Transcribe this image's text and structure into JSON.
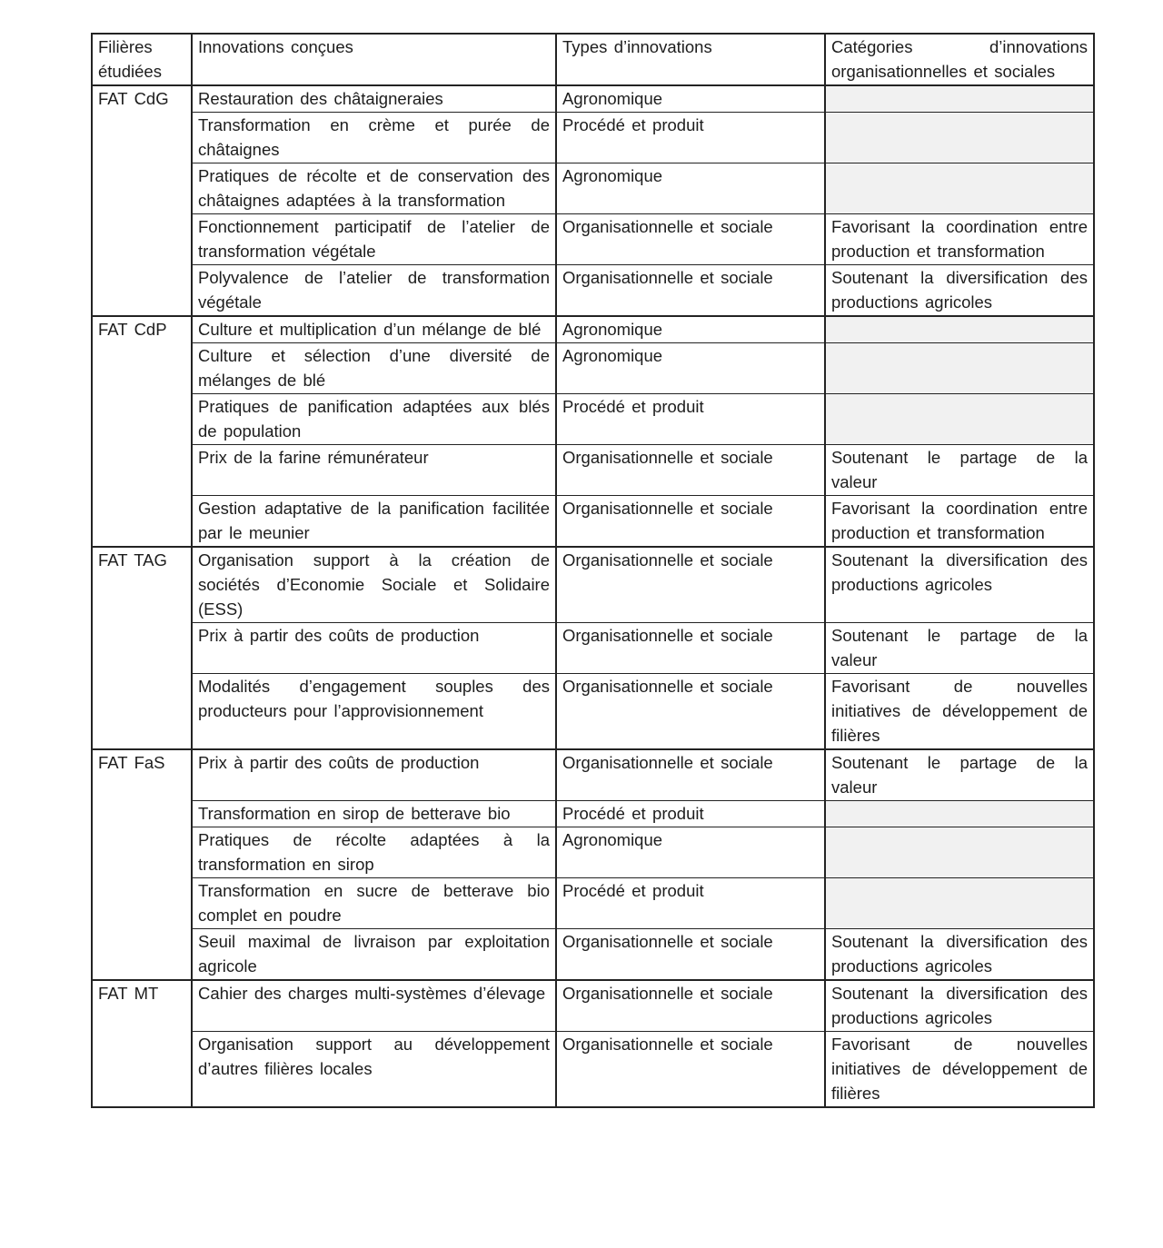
{
  "colors": {
    "border": "#232323",
    "text": "#1d1d1d",
    "empty_cell_background": "#f1f1f1",
    "page_background": "#ffffff"
  },
  "table": {
    "header": {
      "filieres": "Filières étudiées",
      "innovations": "Innovations conçues",
      "types": "Types d’innovations",
      "categories": "Catégories d’innovations organisationnelles et sociales"
    },
    "groups": [
      {
        "filiere": "FAT CdG",
        "rows": [
          {
            "innovation": "Restauration des châtaigneraies",
            "type": "Agronomique",
            "categorie": ""
          },
          {
            "innovation": "Transformation en crème et purée de châtaignes",
            "type": "Procédé et produit",
            "categorie": ""
          },
          {
            "innovation": "Pratiques de récolte et de conservation des châtaignes adaptées à la transformation",
            "type": "Agronomique",
            "categorie": ""
          },
          {
            "innovation": "Fonctionnement participatif de l’atelier de transformation végétale",
            "type": "Organisationnelle et sociale",
            "categorie": "Favorisant la coordination entre production et transformation"
          },
          {
            "innovation": "Polyvalence de l’atelier de transformation végétale",
            "type": "Organisationnelle et sociale",
            "categorie": "Soutenant la diversification des productions agricoles"
          }
        ]
      },
      {
        "filiere": "FAT CdP",
        "rows": [
          {
            "innovation": "Culture et multiplication d’un mélange de blé",
            "type": "Agronomique",
            "categorie": ""
          },
          {
            "innovation": "Culture et sélection d’une diversité de mélanges de blé",
            "type": "Agronomique",
            "categorie": ""
          },
          {
            "innovation": "Pratiques de panification adaptées aux blés de population",
            "type": "Procédé et produit",
            "categorie": ""
          },
          {
            "innovation": "Prix de la farine rémunérateur",
            "type": "Organisationnelle et sociale",
            "categorie": "Soutenant le partage de la valeur"
          },
          {
            "innovation": "Gestion adaptative de la panification facilitée par le meunier",
            "type": "Organisationnelle et sociale",
            "categorie": "Favorisant la coordination entre production et transformation"
          }
        ]
      },
      {
        "filiere": "FAT TAG",
        "rows": [
          {
            "innovation": "Organisation support à la création de sociétés d’Economie Sociale et Solidaire (ESS)",
            "type": "Organisationnelle et sociale",
            "categorie": "Soutenant la diversification des productions agricoles"
          },
          {
            "innovation": "Prix à partir des coûts de production",
            "type": "Organisationnelle et sociale",
            "categorie": "Soutenant le partage de la valeur"
          },
          {
            "innovation": "Modalités d’engagement souples des producteurs pour l’approvisionnement",
            "type": "Organisationnelle et sociale",
            "categorie": "Favorisant de nouvelles initiatives de développement de filières"
          }
        ]
      },
      {
        "filiere": "FAT FaS",
        "rows": [
          {
            "innovation": "Prix à partir des coûts de production",
            "type": "Organisationnelle et sociale",
            "categorie": "Soutenant le partage de la valeur"
          },
          {
            "innovation": "Transformation en sirop de betterave bio",
            "type": "Procédé et produit",
            "categorie": ""
          },
          {
            "innovation": "Pratiques de récolte adaptées à la transformation en sirop",
            "type": "Agronomique",
            "categorie": ""
          },
          {
            "innovation": "Transformation en sucre de betterave bio complet en poudre",
            "type": "Procédé et produit",
            "categorie": ""
          },
          {
            "innovation": "Seuil maximal de livraison par exploitation agricole",
            "type": "Organisationnelle et sociale",
            "categorie": "Soutenant la diversification des productions agricoles"
          }
        ]
      },
      {
        "filiere": "FAT MT",
        "rows": [
          {
            "innovation": "Cahier des charges multi-systèmes d’élevage",
            "type": "Organisationnelle et sociale",
            "categorie": "Soutenant la diversification des productions agricoles"
          },
          {
            "innovation": "Organisation support au développement d’autres filières locales",
            "type": "Organisationnelle et sociale",
            "categorie": "Favorisant de nouvelles initiatives de développement de filières"
          }
        ]
      }
    ]
  }
}
